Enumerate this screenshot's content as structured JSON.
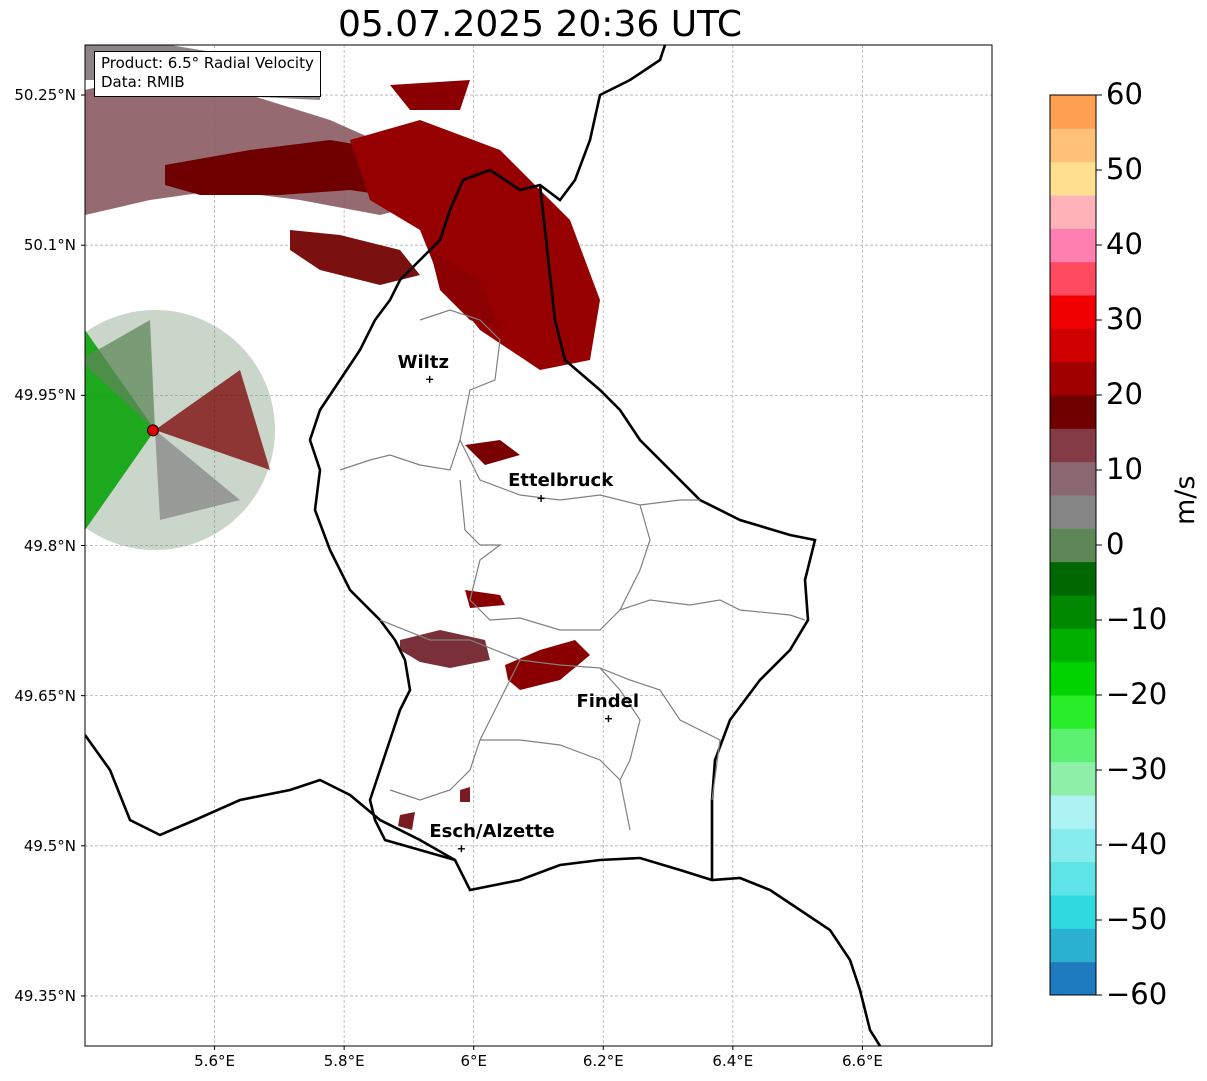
{
  "title": "05.07.2025 20:36 UTC",
  "info_box": {
    "product": "Product: 6.5° Radial Velocity",
    "source": "Data: RMIB"
  },
  "map": {
    "lon_range": [
      5.4,
      6.8
    ],
    "lat_range": [
      49.3,
      50.3
    ],
    "lat_ticks": [
      "50.25°N",
      "50.1°N",
      "49.95°N",
      "49.8°N",
      "49.65°N",
      "49.5°N",
      "49.35°N"
    ],
    "lon_ticks": [
      "5.6°E",
      "5.8°E",
      "6°E",
      "6.2°E",
      "6.4°E",
      "6.6°E"
    ],
    "grid": true,
    "radar_site": {
      "lon": 5.505,
      "lat": 49.915
    },
    "cities": [
      {
        "name": "Wiltz",
        "lon": 5.932,
        "lat": 49.966
      },
      {
        "name": "Ettelbruck",
        "lon": 6.104,
        "lat": 49.847
      },
      {
        "name": "Findel",
        "lon": 6.208,
        "lat": 49.627
      },
      {
        "name": "Esch/Alzette",
        "lon": 5.981,
        "lat": 49.497
      }
    ]
  },
  "colorbar": {
    "unit": "m/s",
    "range": [
      -60,
      60
    ],
    "ticks": [
      "60",
      "50",
      "40",
      "30",
      "20",
      "10",
      "0",
      "−10",
      "−20",
      "−30",
      "−40",
      "−50",
      "−60"
    ],
    "colors": [
      "#1f7bbf",
      "#2ab0d0",
      "#2fd9e0",
      "#5ee3e6",
      "#86ecee",
      "#aef3f3",
      "#8ef0a8",
      "#5cf070",
      "#28ee2a",
      "#00d300",
      "#00b000",
      "#008800",
      "#006800",
      "#5e8758",
      "#858585",
      "#8b6870",
      "#843b45",
      "#6e0000",
      "#a00000",
      "#d00000",
      "#f00000",
      "#ff4a60",
      "#ff80b0",
      "#ffb2b8",
      "#ffe090",
      "#ffc078",
      "#ffa050"
    ]
  }
}
